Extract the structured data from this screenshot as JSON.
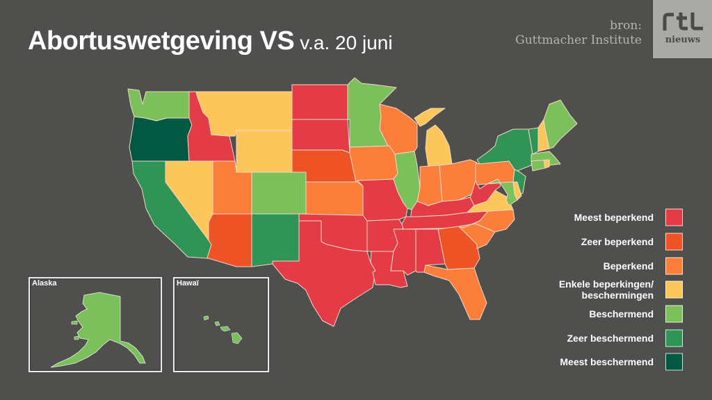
{
  "title": {
    "main": "Abortuswetgeving VS",
    "sub": "v.a. 20 juni"
  },
  "source": {
    "line1": "bron:",
    "line2": "Guttmacher Institute"
  },
  "logo": {
    "top": "rtl",
    "bottom": "nieuws"
  },
  "categories": [
    {
      "key": "most_restrictive",
      "label": "Meest beperkend",
      "color": "#e43c47"
    },
    {
      "key": "very_restrictive",
      "label": "Zeer beperkend",
      "color": "#ee5326"
    },
    {
      "key": "restrictive",
      "label": "Beperkend",
      "color": "#fb7f3b"
    },
    {
      "key": "some",
      "label": "Enkele beperkingen/ beschermingen",
      "color": "#fdc65a"
    },
    {
      "key": "protective",
      "label": "Beschermend",
      "color": "#7cc05c"
    },
    {
      "key": "very_protective",
      "label": "Zeer beschermend",
      "color": "#2f9456"
    },
    {
      "key": "most_protective",
      "label": "Meest beschermend",
      "color": "#035843"
    }
  ],
  "insets": {
    "alaska": "Alaska",
    "hawaii": "Hawaï"
  },
  "states": {
    "WA": "protective",
    "OR": "most_protective",
    "CA": "very_protective",
    "ID": "most_restrictive",
    "NV": "some",
    "MT": "some",
    "WY": "some",
    "UT": "restrictive",
    "AZ": "very_restrictive",
    "CO": "protective",
    "NM": "very_protective",
    "ND": "most_restrictive",
    "SD": "most_restrictive",
    "NE": "very_restrictive",
    "KS": "restrictive",
    "OK": "most_restrictive",
    "TX": "most_restrictive",
    "MN": "protective",
    "IA": "restrictive",
    "MO": "most_restrictive",
    "AR": "most_restrictive",
    "LA": "most_restrictive",
    "WI": "restrictive",
    "IL": "protective",
    "MI": "some",
    "IN": "restrictive",
    "OH": "restrictive",
    "KY": "most_restrictive",
    "TN": "most_restrictive",
    "MS": "most_restrictive",
    "AL": "most_restrictive",
    "GA": "very_restrictive",
    "FL": "restrictive",
    "SC": "restrictive",
    "NC": "restrictive",
    "VA": "some",
    "WV": "most_restrictive",
    "PA": "restrictive",
    "NY": "very_protective",
    "NJ": "very_protective",
    "DE": "some",
    "MD": "protective",
    "CT": "protective",
    "RI": "some",
    "MA": "protective",
    "VT": "very_protective",
    "NH": "some",
    "ME": "protective",
    "AK": "protective",
    "HI": "protective"
  }
}
